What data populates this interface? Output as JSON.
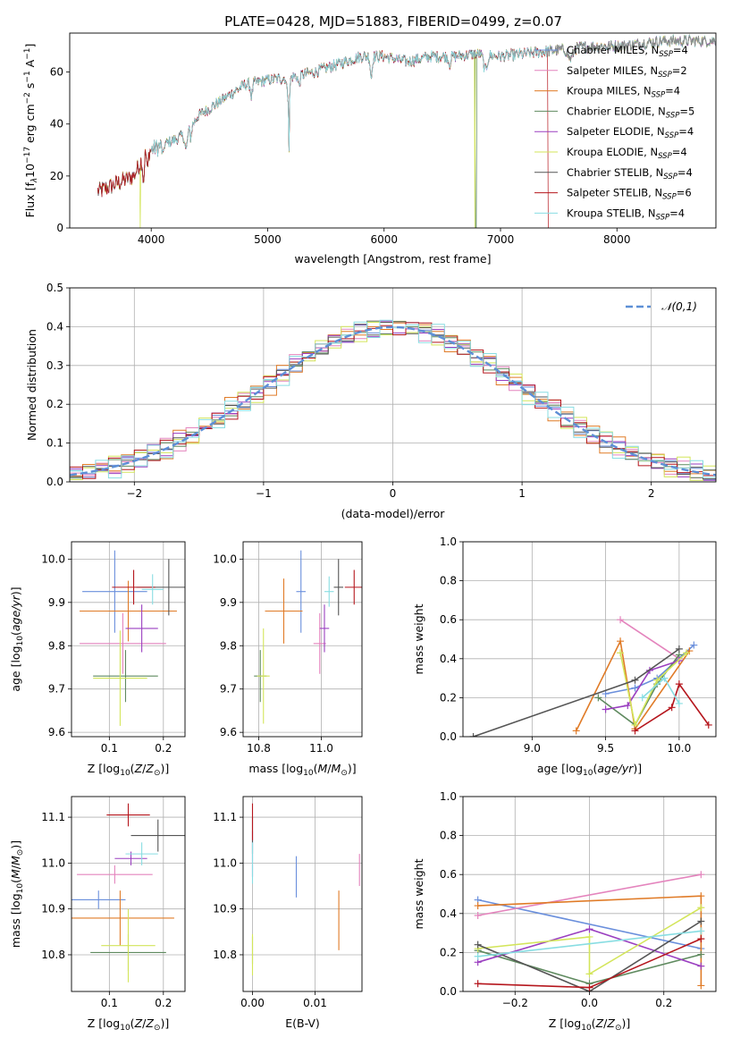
{
  "figure_title": "PLATE=0428, MJD=51883, FIBERID=0499, z=0.07",
  "models": [
    {
      "name": "Chabrier MILES",
      "nssp": "4",
      "color": "#6a8fdc"
    },
    {
      "name": "Salpeter MILES",
      "nssp": "2",
      "color": "#e484bd"
    },
    {
      "name": "Kroupa MILES",
      "nssp": "4",
      "color": "#e07b27"
    },
    {
      "name": "Chabrier ELODIE",
      "nssp": "5",
      "color": "#5f8a5f"
    },
    {
      "name": "Salpeter ELODIE",
      "nssp": "4",
      "color": "#9a3fc0"
    },
    {
      "name": "Kroupa ELODIE",
      "nssp": "4",
      "color": "#d3e55a"
    },
    {
      "name": "Chabrier STELIB",
      "nssp": "4",
      "color": "#555555"
    },
    {
      "name": "Salpeter STELIB",
      "nssp": "6",
      "color": "#b5161d"
    },
    {
      "name": "Kroupa STELIB",
      "nssp": "4",
      "color": "#88dde2"
    }
  ],
  "chart_data": [
    {
      "id": "spectrum",
      "type": "line",
      "xlabel": "wavelength [Angstrom, rest frame]",
      "ylabel": "Flux [f_λ 10^-17 erg cm^-2 s^-1 A^-1]",
      "xlim": [
        3300,
        8850
      ],
      "ylim": [
        0,
        75
      ],
      "xticks": [
        4000,
        5000,
        6000,
        7000,
        8000
      ],
      "yticks": [
        0,
        20,
        40,
        60
      ],
      "legend": "right",
      "continuum_anchors": [
        [
          3550,
          14
        ],
        [
          3700,
          17
        ],
        [
          3850,
          20
        ],
        [
          3950,
          29
        ],
        [
          4100,
          32
        ],
        [
          4300,
          36
        ],
        [
          4400,
          43
        ],
        [
          4600,
          49
        ],
        [
          4800,
          55
        ],
        [
          5000,
          57
        ],
        [
          5200,
          58
        ],
        [
          5400,
          60
        ],
        [
          5600,
          63
        ],
        [
          5800,
          66
        ],
        [
          6000,
          66
        ],
        [
          6200,
          64
        ],
        [
          6400,
          66
        ],
        [
          6600,
          66
        ],
        [
          6800,
          67
        ],
        [
          7000,
          66
        ],
        [
          7200,
          67
        ],
        [
          7400,
          68
        ],
        [
          7600,
          69
        ],
        [
          7800,
          70
        ],
        [
          8000,
          70
        ],
        [
          8200,
          71
        ],
        [
          8400,
          72
        ],
        [
          8800,
          72
        ]
      ],
      "absorption_features": [
        [
          3934,
          6,
          10
        ],
        [
          3968,
          6,
          8
        ],
        [
          4101,
          6,
          5
        ],
        [
          4300,
          10,
          6
        ],
        [
          4340,
          6,
          4
        ],
        [
          4861,
          8,
          5
        ],
        [
          5175,
          10,
          7
        ],
        [
          5185,
          3,
          24
        ],
        [
          5270,
          8,
          4
        ],
        [
          5890,
          8,
          8
        ],
        [
          6563,
          8,
          3
        ],
        [
          6870,
          15,
          6
        ],
        [
          7600,
          20,
          4
        ]
      ],
      "dropouts": [
        {
          "model": 5,
          "wavelength": 3905
        },
        {
          "model": 5,
          "wavelength": 6780
        },
        {
          "model": 3,
          "wavelength": 6790
        },
        {
          "model": 7,
          "wavelength": 7410
        }
      ]
    },
    {
      "id": "residuals",
      "type": "histogram",
      "xlabel": "(data-model)/error",
      "ylabel": "Normed distribution",
      "xlim": [
        -2.5,
        2.5
      ],
      "ylim": [
        0,
        0.5
      ],
      "xticks": [
        -2,
        -1,
        0,
        1,
        2
      ],
      "yticks": [
        0.0,
        0.1,
        0.2,
        0.3,
        0.4,
        0.5
      ],
      "bin_edges_start": -2.5,
      "bin_width": 0.1,
      "reference_curve": {
        "label": "𝒩(0,1)",
        "style": "dashed",
        "color": "#5d8fd6"
      },
      "bin_wiggle": [
        0.004,
        -0.006,
        0.007,
        -0.005,
        0.003,
        0.006,
        -0.007,
        0.005,
        -0.004,
        0.006,
        -0.005,
        0.004,
        0.007,
        -0.006,
        0.005,
        -0.003,
        0.006,
        -0.007,
        0.008,
        -0.004,
        0.005,
        -0.006,
        0.009,
        -0.005,
        0.004,
        -0.008,
        0.006,
        -0.004,
        0.007,
        -0.005,
        0.003,
        0.006,
        -0.007,
        0.005,
        -0.004,
        0.006,
        -0.005,
        0.004,
        0.007,
        -0.006,
        0.005,
        -0.003,
        0.006,
        -0.007,
        0.004,
        -0.004,
        0.005,
        -0.006,
        0.004,
        -0.005
      ]
    },
    {
      "id": "age_vs_Z",
      "type": "errorbar",
      "xlabel": "Z [log10(Z/Z⊙)]",
      "ylabel": "age  [log10(age/yr)]",
      "xlim": [
        0.03,
        0.24
      ],
      "ylim": [
        9.59,
        10.04
      ],
      "xticks": [
        0.1,
        0.2
      ],
      "yticks": [
        9.6,
        9.7,
        9.8,
        9.9,
        10.0
      ],
      "points": [
        {
          "model": 0,
          "x": 0.11,
          "xerr": 0.06,
          "y": 9.925,
          "yerr": 0.095
        },
        {
          "model": 1,
          "x": 0.125,
          "xerr": 0.08,
          "y": 9.805,
          "yerr": 0.07
        },
        {
          "model": 2,
          "x": 0.135,
          "xerr": 0.09,
          "y": 9.88,
          "yerr": 0.07
        },
        {
          "model": 3,
          "x": 0.13,
          "xerr": 0.06,
          "y": 9.73,
          "yerr": 0.06
        },
        {
          "model": 4,
          "x": 0.16,
          "xerr": 0.03,
          "y": 9.84,
          "yerr": 0.055
        },
        {
          "model": 5,
          "x": 0.12,
          "xerr": 0.05,
          "y": 9.725,
          "yerr": 0.11
        },
        {
          "model": 6,
          "x": 0.21,
          "xerr": 0.06,
          "y": 9.935,
          "yerr": 0.065
        },
        {
          "model": 7,
          "x": 0.145,
          "xerr": 0.04,
          "y": 9.935,
          "yerr": 0.04
        },
        {
          "model": 8,
          "x": 0.18,
          "xerr": 0.02,
          "y": 9.93,
          "yerr": 0.035
        }
      ]
    },
    {
      "id": "age_vs_mass",
      "type": "errorbar",
      "xlabel": "mass [log10(M/M⊙)]",
      "ylabel": "",
      "xlim": [
        10.75,
        11.13
      ],
      "ylim": [
        9.59,
        10.04
      ],
      "xticks": [
        10.8,
        11.0
      ],
      "yticks": [
        9.6,
        9.7,
        9.8,
        9.9,
        10.0
      ],
      "points": [
        {
          "model": 0,
          "x": 10.935,
          "xerr": 0.015,
          "y": 9.925,
          "yerr": 0.095
        },
        {
          "model": 1,
          "x": 10.995,
          "xerr": 0.02,
          "y": 9.805,
          "yerr": 0.07
        },
        {
          "model": 2,
          "x": 10.88,
          "xerr": 0.06,
          "y": 9.88,
          "yerr": 0.075
        },
        {
          "model": 3,
          "x": 10.805,
          "xerr": 0.02,
          "y": 9.73,
          "yerr": 0.06
        },
        {
          "model": 4,
          "x": 11.01,
          "xerr": 0.015,
          "y": 9.84,
          "yerr": 0.055
        },
        {
          "model": 5,
          "x": 10.815,
          "xerr": 0.02,
          "y": 9.73,
          "yerr": 0.11
        },
        {
          "model": 6,
          "x": 11.055,
          "xerr": 0.015,
          "y": 9.935,
          "yerr": 0.065
        },
        {
          "model": 7,
          "x": 11.105,
          "xerr": 0.03,
          "y": 9.935,
          "yerr": 0.04
        },
        {
          "model": 8,
          "x": 11.025,
          "xerr": 0.015,
          "y": 9.925,
          "yerr": 0.035
        }
      ]
    },
    {
      "id": "weight_vs_age",
      "type": "line",
      "xlabel": "age  [log10(age/yr)]",
      "ylabel": "mass weight",
      "xlim": [
        8.53,
        10.25
      ],
      "ylim": [
        0,
        1
      ],
      "xticks": [
        9.0,
        9.5,
        10.0
      ],
      "yticks": [
        0.0,
        0.2,
        0.4,
        0.6,
        0.8,
        1.0
      ],
      "series": [
        {
          "model": 0,
          "x": [
            9.5,
            9.7,
            9.85,
            10.1
          ],
          "y": [
            0.22,
            0.25,
            0.3,
            0.47
          ]
        },
        {
          "model": 1,
          "x": [
            9.6,
            10.0
          ],
          "y": [
            0.6,
            0.4
          ]
        },
        {
          "model": 2,
          "x": [
            9.3,
            9.6,
            9.7,
            10.07
          ],
          "y": [
            0.03,
            0.49,
            0.04,
            0.44
          ]
        },
        {
          "model": 3,
          "x": [
            9.45,
            9.7,
            9.85,
            10.0
          ],
          "y": [
            0.2,
            0.06,
            0.27,
            0.42
          ]
        },
        {
          "model": 4,
          "x": [
            9.5,
            9.65,
            9.8,
            10.0
          ],
          "y": [
            0.14,
            0.16,
            0.34,
            0.39
          ]
        },
        {
          "model": 5,
          "x": [
            9.6,
            9.7,
            9.85,
            10.05
          ],
          "y": [
            0.43,
            0.06,
            0.29,
            0.43
          ]
        },
        {
          "model": 6,
          "x": [
            8.6,
            9.7,
            10.0
          ],
          "y": [
            0.0,
            0.29,
            0.45
          ]
        },
        {
          "model": 7,
          "x": [
            9.7,
            9.95,
            10.0,
            10.2
          ],
          "y": [
            0.03,
            0.15,
            0.27,
            0.06
          ]
        },
        {
          "model": 8,
          "x": [
            9.75,
            9.9,
            10.0
          ],
          "y": [
            0.2,
            0.3,
            0.17
          ]
        }
      ]
    },
    {
      "id": "mass_vs_Z",
      "type": "errorbar",
      "xlabel": "Z [log10(Z/Z⊙)]",
      "ylabel": "mass [log10(M/M⊙)]",
      "xlim": [
        0.03,
        0.24
      ],
      "ylim": [
        10.72,
        11.145
      ],
      "xticks": [
        0.1,
        0.2
      ],
      "yticks": [
        10.8,
        10.9,
        11.0,
        11.1
      ],
      "points": [
        {
          "model": 0,
          "x": 0.08,
          "xerr": 0.05,
          "y": 10.92,
          "yerr": 0.02
        },
        {
          "model": 1,
          "x": 0.11,
          "xerr": 0.07,
          "y": 10.975,
          "yerr": 0.02
        },
        {
          "model": 2,
          "x": 0.12,
          "xerr": 0.1,
          "y": 10.88,
          "yerr": 0.06
        },
        {
          "model": 3,
          "x": 0.135,
          "xerr": 0.07,
          "y": 10.805,
          "yerr": 0.04
        },
        {
          "model": 4,
          "x": 0.14,
          "xerr": 0.03,
          "y": 11.01,
          "yerr": 0.015
        },
        {
          "model": 5,
          "x": 0.135,
          "xerr": 0.05,
          "y": 10.82,
          "yerr": 0.08
        },
        {
          "model": 6,
          "x": 0.19,
          "xerr": 0.05,
          "y": 11.06,
          "yerr": 0.035
        },
        {
          "model": 7,
          "x": 0.135,
          "xerr": 0.04,
          "y": 11.105,
          "yerr": 0.025
        },
        {
          "model": 8,
          "x": 0.16,
          "xerr": 0.03,
          "y": 11.02,
          "yerr": 0.025
        }
      ]
    },
    {
      "id": "mass_vs_ebv",
      "type": "errorbar",
      "xlabel": "E(B-V)",
      "ylabel": "",
      "xlim": [
        -0.0015,
        0.0175
      ],
      "ylim": [
        10.72,
        11.145
      ],
      "xticks": [
        0.0,
        0.01
      ],
      "yticks": [
        10.8,
        10.9,
        11.0,
        11.1
      ],
      "points": [
        {
          "model": 0,
          "x": 0.007,
          "xerr": 0,
          "y": 10.97,
          "yerr": 0.045
        },
        {
          "model": 1,
          "x": 0.0171,
          "xerr": 0,
          "y": 10.985,
          "yerr": 0.035
        },
        {
          "model": 2,
          "x": 0.0138,
          "xerr": 0,
          "y": 10.875,
          "yerr": 0.065
        },
        {
          "model": 3,
          "x": 0.0,
          "xerr": 0,
          "y": 10.81,
          "yerr": 0.03
        },
        {
          "model": 4,
          "x": 0.0,
          "xerr": 0,
          "y": 11.02,
          "yerr": 0.05
        },
        {
          "model": 5,
          "x": 0.0,
          "xerr": 0,
          "y": 10.8,
          "yerr": 0.045
        },
        {
          "model": 6,
          "x": 0.0,
          "xerr": 0,
          "y": 11.06,
          "yerr": 0.04
        },
        {
          "model": 7,
          "x": 0.0,
          "xerr": 0,
          "y": 11.09,
          "yerr": 0.04
        },
        {
          "model": 8,
          "x": 0.0,
          "xerr": 0,
          "y": 11.0,
          "yerr": 0.045
        }
      ]
    },
    {
      "id": "weight_vs_Z",
      "type": "line",
      "xlabel": "Z [log10(Z/Z⊙)]",
      "ylabel": "mass weight",
      "xlim": [
        -0.34,
        0.34
      ],
      "ylim": [
        0,
        1
      ],
      "xticks": [
        -0.2,
        0.0,
        0.2
      ],
      "yticks": [
        0.0,
        0.2,
        0.4,
        0.6,
        0.8,
        1.0
      ],
      "series": [
        {
          "model": 0,
          "x": [
            -0.3,
            0.3
          ],
          "y": [
            0.47,
            0.22
          ]
        },
        {
          "model": 1,
          "x": [
            -0.3,
            0.3
          ],
          "y": [
            0.39,
            0.6
          ]
        },
        {
          "model": 2,
          "x": [
            -0.3,
            0.3,
            0.3
          ],
          "y": [
            0.44,
            0.49,
            0.03
          ]
        },
        {
          "model": 3,
          "x": [
            -0.3,
            0.0,
            0.3
          ],
          "y": [
            0.21,
            0.04,
            0.19
          ]
        },
        {
          "model": 4,
          "x": [
            -0.3,
            0.0,
            0.3
          ],
          "y": [
            0.15,
            0.32,
            0.13
          ]
        },
        {
          "model": 5,
          "x": [
            -0.3,
            0.0,
            0.0,
            0.3
          ],
          "y": [
            0.22,
            0.28,
            0.09,
            0.43
          ]
        },
        {
          "model": 6,
          "x": [
            -0.3,
            0.0,
            0.3
          ],
          "y": [
            0.24,
            0.0,
            0.36
          ]
        },
        {
          "model": 7,
          "x": [
            -0.3,
            0.0,
            0.3
          ],
          "y": [
            0.04,
            0.02,
            0.27
          ]
        },
        {
          "model": 8,
          "x": [
            -0.3,
            0.3
          ],
          "y": [
            0.18,
            0.31
          ]
        }
      ]
    }
  ]
}
